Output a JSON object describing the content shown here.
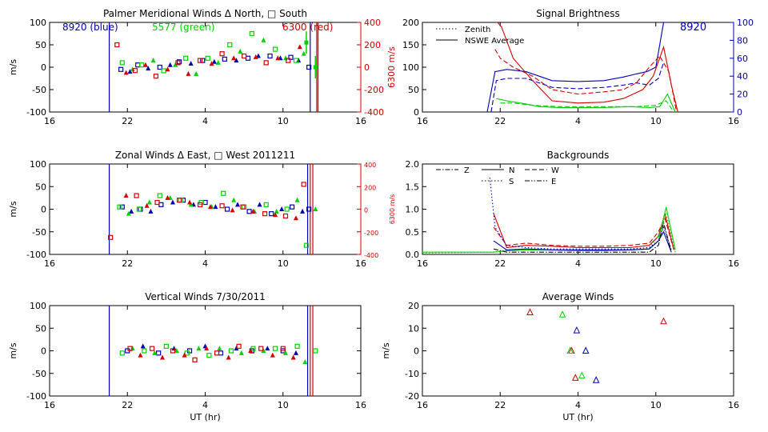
{
  "figure": {
    "colors": {
      "blue": "#0000b4",
      "green": "#00d200",
      "red": "#d20000",
      "black": "#000000"
    }
  },
  "chart_data": [
    {
      "id": "meridional",
      "type": "scatter",
      "title": "Palmer Meridional Winds Δ North, □ South",
      "ylabel": "m/s",
      "xlabel": "",
      "y2label": "6300 m/s",
      "x_ticks": [
        "16",
        "22",
        "4",
        "10",
        "16"
      ],
      "y_ticks": [
        "100",
        "50",
        "0",
        "-50",
        "-100"
      ],
      "y2_ticks": [
        "400",
        "200",
        "0",
        "-200",
        "-400"
      ],
      "xlim": [
        16,
        40
      ],
      "ylim": [
        -100,
        100
      ],
      "y2lim": [
        -400,
        400
      ],
      "annotations": [
        "8920 (blue)",
        "5577 (green)",
        "6300 (red)"
      ],
      "vlines": [
        {
          "x": 20.6,
          "color": "blue"
        },
        {
          "x": 36.1,
          "color": "blue"
        },
        {
          "x": 36.6,
          "color": "red"
        },
        {
          "x": 36.7,
          "color": "red"
        }
      ],
      "series": [
        {
          "name": "8920",
          "color": "blue",
          "x": [
            21.5,
            22.2,
            22.8,
            23.6,
            24.5,
            25.3,
            26.0,
            26.9,
            27.8,
            28.7,
            29.5,
            30.4,
            31.3,
            32.1,
            33.0,
            33.8,
            34.6,
            35.2,
            36.0
          ],
          "y": [
            -5,
            -10,
            5,
            -3,
            0,
            5,
            12,
            8,
            15,
            12,
            18,
            15,
            20,
            25,
            25,
            20,
            22,
            15,
            0
          ]
        },
        {
          "name": "5577",
          "color": "green",
          "x": [
            21.6,
            22.4,
            23.1,
            24.0,
            24.8,
            25.7,
            26.5,
            27.3,
            28.2,
            29.0,
            29.9,
            30.7,
            31.6,
            32.5,
            33.4,
            34.2,
            35.0,
            35.6
          ],
          "y": [
            10,
            -5,
            5,
            15,
            -8,
            5,
            20,
            -15,
            20,
            10,
            50,
            35,
            75,
            60,
            40,
            20,
            15,
            30
          ]
        },
        {
          "name": "5577 error bars",
          "color": "green",
          "x": [
            35.8,
            36.5
          ],
          "y": [
            55,
            0
          ]
        },
        {
          "name": "6300",
          "color": "red",
          "y_axis": "right",
          "x": [
            21.2,
            21.9,
            22.6,
            23.4,
            24.2,
            25.1,
            25.9,
            26.7,
            27.6,
            28.5,
            29.3,
            30.2,
            31.0,
            31.9,
            32.7,
            33.6,
            34.4,
            35.3
          ],
          "y": [
            200,
            -50,
            -30,
            20,
            -80,
            -20,
            40,
            -60,
            60,
            30,
            120,
            80,
            100,
            90,
            40,
            80,
            60,
            180
          ]
        }
      ]
    },
    {
      "id": "zonal",
      "type": "scatter",
      "title": "Zonal Winds Δ East, □ West 2011211",
      "ylabel": "m/s",
      "xlabel": "",
      "y2label": "6300 m/s",
      "x_ticks": [
        "16",
        "22",
        "4",
        "10",
        "16"
      ],
      "y_ticks": [
        "100",
        "50",
        "0",
        "-50",
        "-100"
      ],
      "y2_ticks": [
        "400",
        "200",
        "0",
        "-200",
        "-400"
      ],
      "xlim": [
        16,
        40
      ],
      "ylim": [
        -100,
        100
      ],
      "y2lim": [
        -400,
        400
      ],
      "vlines": [
        {
          "x": 20.6,
          "color": "blue"
        },
        {
          "x": 35.9,
          "color": "blue"
        },
        {
          "x": 36.1,
          "color": "red"
        },
        {
          "x": 36.3,
          "color": "red"
        }
      ],
      "series": [
        {
          "name": "8920",
          "color": "blue",
          "x": [
            21.6,
            22.3,
            23.0,
            23.8,
            24.6,
            25.5,
            26.3,
            27.1,
            28.0,
            28.8,
            29.7,
            30.5,
            31.4,
            32.2,
            33.1,
            33.9,
            34.7,
            35.5,
            36.0
          ],
          "y": [
            5,
            -5,
            0,
            -5,
            10,
            15,
            20,
            10,
            15,
            5,
            0,
            10,
            -5,
            10,
            -10,
            0,
            5,
            -5,
            0
          ]
        },
        {
          "name": "5577",
          "color": "green",
          "x": [
            21.4,
            22.1,
            22.9,
            23.7,
            24.5,
            25.3,
            26.1,
            26.9,
            27.7,
            28.5,
            29.4,
            30.2,
            31.0,
            31.8,
            32.7,
            33.5,
            34.3,
            35.1,
            35.8,
            36.5
          ],
          "y": [
            5,
            -10,
            0,
            15,
            30,
            25,
            20,
            10,
            15,
            5,
            35,
            20,
            5,
            -5,
            10,
            -5,
            0,
            20,
            -80,
            0
          ]
        },
        {
          "name": "6300",
          "color": "red",
          "y_axis": "right",
          "x": [
            20.7,
            21.9,
            22.7,
            23.5,
            24.3,
            25.1,
            26.0,
            26.8,
            27.6,
            28.4,
            29.3,
            30.1,
            30.9,
            31.7,
            32.6,
            33.4,
            34.2,
            35.0,
            35.6
          ],
          "y": [
            -250,
            120,
            120,
            30,
            60,
            100,
            80,
            60,
            40,
            20,
            30,
            -10,
            20,
            -20,
            -40,
            -50,
            -60,
            -80,
            220
          ]
        }
      ]
    },
    {
      "id": "vertical",
      "type": "scatter",
      "title": "Vertical Winds 7/30/2011",
      "ylabel": "m/s",
      "xlabel": "UT (hr)",
      "x_ticks": [
        "16",
        "22",
        "4",
        "10",
        "16"
      ],
      "y_ticks": [
        "100",
        "50",
        "0",
        "-50",
        "-100"
      ],
      "xlim": [
        16,
        40
      ],
      "ylim": [
        -100,
        100
      ],
      "vlines": [
        {
          "x": 20.6,
          "color": "blue"
        },
        {
          "x": 35.9,
          "color": "blue"
        },
        {
          "x": 36.1,
          "color": "red"
        },
        {
          "x": 36.3,
          "color": "red"
        }
      ],
      "series": [
        {
          "name": "8920",
          "color": "blue",
          "x": [
            22.0,
            23.2,
            24.4,
            25.6,
            26.8,
            28.0,
            29.2,
            30.4,
            31.6,
            32.8,
            34.0,
            35.0
          ],
          "y": [
            0,
            10,
            -5,
            5,
            0,
            10,
            -5,
            5,
            0,
            5,
            0,
            -5
          ]
        },
        {
          "name": "5577",
          "color": "green",
          "x": [
            21.6,
            22.4,
            23.3,
            24.1,
            25.0,
            25.8,
            26.6,
            27.5,
            28.3,
            29.1,
            30.0,
            30.8,
            31.7,
            32.5,
            33.4,
            34.2,
            35.1,
            35.7,
            36.5
          ],
          "y": [
            -5,
            5,
            0,
            -5,
            10,
            0,
            -5,
            5,
            -10,
            5,
            0,
            -5,
            5,
            0,
            5,
            -5,
            10,
            -25,
            0
          ]
        },
        {
          "name": "6300",
          "color": "red",
          "x": [
            22.2,
            23.0,
            23.9,
            24.7,
            25.5,
            26.4,
            27.2,
            28.1,
            28.9,
            29.8,
            30.6,
            31.5,
            32.3,
            33.2,
            34.0,
            34.8
          ],
          "y": [
            5,
            -10,
            5,
            -15,
            0,
            -10,
            -20,
            5,
            -5,
            -15,
            10,
            0,
            5,
            -10,
            5,
            -15
          ]
        }
      ]
    },
    {
      "id": "brightness",
      "type": "line",
      "title": "Signal Brightness",
      "ylabel": "",
      "xlabel": "",
      "x_ticks": [
        "16",
        "22",
        "4",
        "10",
        "16"
      ],
      "y_ticks": [
        "200",
        "150",
        "100",
        "50",
        "0"
      ],
      "y2_ticks": [
        "100",
        "80",
        "60",
        "40",
        "20",
        "0"
      ],
      "xlim": [
        16,
        40
      ],
      "ylim": [
        0,
        200
      ],
      "y2lim": [
        0,
        100
      ],
      "annotations": [
        "8920"
      ],
      "legend": [
        "Zenith",
        "NSWE Average"
      ],
      "series": [
        {
          "name": "blue solid",
          "color": "blue",
          "style": "solid",
          "x": [
            21.0,
            21.6,
            22.5,
            24.0,
            26.0,
            28.0,
            30.0,
            31.5,
            32.5,
            33.3,
            34.0,
            34.6,
            35.0
          ],
          "y": [
            0,
            90,
            95,
            90,
            70,
            68,
            70,
            78,
            85,
            90,
            100,
            200,
            200
          ]
        },
        {
          "name": "blue dashed",
          "color": "blue",
          "style": "dashed",
          "x": [
            21.3,
            21.7,
            22.5,
            24.0,
            26.0,
            28.0,
            30.0,
            31.5,
            32.5,
            33.5,
            34.2,
            34.6
          ],
          "y": [
            0,
            70,
            75,
            75,
            55,
            52,
            55,
            60,
            65,
            60,
            75,
            110
          ]
        },
        {
          "name": "red solid",
          "color": "red",
          "style": "solid",
          "x": [
            21.8,
            22.1,
            23.0,
            24.5,
            26.0,
            28.0,
            30.0,
            31.5,
            33.0,
            33.8,
            34.6,
            35.2,
            35.7
          ],
          "y": [
            200,
            190,
            120,
            70,
            25,
            20,
            22,
            30,
            50,
            80,
            145,
            60,
            0
          ]
        },
        {
          "name": "red dashed",
          "color": "red",
          "style": "dashed",
          "x": [
            21.6,
            22.0,
            23.0,
            24.5,
            26.0,
            28.0,
            30.0,
            31.5,
            32.5,
            33.5,
            34.3,
            35.0,
            35.6
          ],
          "y": [
            140,
            120,
            100,
            80,
            50,
            40,
            45,
            50,
            65,
            100,
            125,
            90,
            0
          ]
        },
        {
          "name": "green solid",
          "color": "green",
          "style": "solid",
          "x": [
            21.7,
            22.5,
            24.0,
            25.0,
            26.5,
            28.0,
            30.0,
            32.0,
            33.5,
            34.3,
            34.9,
            35.5
          ],
          "y": [
            30,
            25,
            18,
            12,
            10,
            10,
            10,
            12,
            10,
            12,
            40,
            0
          ]
        },
        {
          "name": "green dashed",
          "color": "green",
          "style": "dashed",
          "x": [
            22.0,
            23.0,
            24.5,
            26.5,
            28.5,
            30.5,
            32.5,
            34.0,
            34.8,
            35.4
          ],
          "y": [
            20,
            20,
            15,
            12,
            12,
            12,
            12,
            15,
            25,
            0
          ]
        }
      ]
    },
    {
      "id": "backgrounds",
      "type": "line",
      "title": "Backgrounds",
      "ylabel": "",
      "xlabel": "",
      "x_ticks": [
        "16",
        "22",
        "4",
        "10",
        "16"
      ],
      "y_ticks": [
        "2.0",
        "1.5",
        "1.0",
        "0.5",
        "0.0"
      ],
      "xlim": [
        16,
        40
      ],
      "ylim": [
        0,
        2.0
      ],
      "legend": [
        "Z",
        "N",
        "W",
        "S",
        "E"
      ],
      "series": [
        {
          "name": "red",
          "color": "red",
          "style": "solid",
          "x": [
            21.5,
            22.5,
            24.0,
            26.0,
            28.0,
            30.0,
            32.0,
            33.5,
            34.2,
            34.7,
            35.4
          ],
          "y": [
            0.9,
            0.15,
            0.2,
            0.18,
            0.15,
            0.15,
            0.15,
            0.2,
            0.4,
            0.9,
            0.1
          ]
        },
        {
          "name": "red2",
          "color": "red",
          "style": "dashed",
          "x": [
            21.5,
            22.5,
            24.0,
            26.0,
            28.0,
            30.0,
            32.0,
            33.5,
            34.2,
            34.7,
            35.4
          ],
          "y": [
            0.6,
            0.2,
            0.25,
            0.2,
            0.18,
            0.18,
            0.2,
            0.25,
            0.5,
            0.8,
            0.1
          ]
        },
        {
          "name": "green",
          "color": "green",
          "style": "solid",
          "x": [
            16.0,
            21.5,
            22.5,
            24.0,
            26.0,
            28.0,
            30.0,
            32.0,
            33.5,
            34.2,
            34.8,
            35.5
          ],
          "y": [
            0.05,
            0.05,
            0.08,
            0.1,
            0.1,
            0.08,
            0.08,
            0.1,
            0.12,
            0.3,
            1.05,
            0.1
          ]
        },
        {
          "name": "green2",
          "color": "green",
          "style": "dotted",
          "x": [
            16.0,
            21.5,
            22.5,
            24.0,
            26.0,
            28.0,
            30.0,
            32.0,
            33.5,
            34.2,
            34.8,
            35.5
          ],
          "y": [
            0.03,
            0.05,
            0.1,
            0.12,
            0.1,
            0.1,
            0.1,
            0.12,
            0.15,
            0.4,
            0.9,
            0.05
          ]
        },
        {
          "name": "blue",
          "color": "blue",
          "style": "dotted",
          "x": [
            21.2,
            21.6,
            22.5,
            24.0,
            26.0,
            28.0,
            30.0,
            32.0,
            33.5,
            34.2,
            34.6,
            35.2
          ],
          "y": [
            1.7,
            0.6,
            0.2,
            0.15,
            0.12,
            0.12,
            0.12,
            0.12,
            0.15,
            0.3,
            0.6,
            0.1
          ]
        },
        {
          "name": "blue2",
          "color": "blue",
          "style": "solid",
          "x": [
            21.5,
            22.5,
            24.0,
            26.0,
            28.0,
            30.0,
            32.0,
            33.5,
            34.2,
            34.6,
            35.2
          ],
          "y": [
            0.3,
            0.1,
            0.12,
            0.1,
            0.1,
            0.1,
            0.1,
            0.12,
            0.3,
            0.5,
            0.05
          ]
        },
        {
          "name": "black",
          "color": "black",
          "style": "dashdot",
          "x": [
            21.5,
            22.5,
            24.0,
            26.0,
            28.0,
            30.0,
            32.0,
            33.5,
            34.2,
            34.6,
            35.2
          ],
          "y": [
            0.12,
            0.05,
            0.05,
            0.05,
            0.05,
            0.05,
            0.05,
            0.05,
            0.2,
            0.7,
            0.05
          ]
        }
      ]
    },
    {
      "id": "average",
      "type": "scatter",
      "title": "Average Winds",
      "ylabel": "m/s",
      "xlabel": "UT (hr)",
      "x_ticks": [
        "16",
        "22",
        "4",
        "10",
        "16"
      ],
      "y_ticks": [
        "20",
        "10",
        "0",
        "-10",
        "-20"
      ],
      "xlim": [
        16,
        40
      ],
      "ylim": [
        -20,
        20
      ],
      "series": [
        {
          "name": "red",
          "color": "red",
          "x": [
            24.3,
            27.5,
            27.8,
            34.6
          ],
          "y": [
            17,
            0,
            -12,
            13
          ]
        },
        {
          "name": "green",
          "color": "green",
          "x": [
            26.8,
            27.4,
            28.3
          ],
          "y": [
            16,
            0,
            -11
          ]
        },
        {
          "name": "blue",
          "color": "blue",
          "x": [
            27.9,
            28.6,
            29.4
          ],
          "y": [
            9,
            0,
            -13
          ]
        }
      ]
    }
  ]
}
